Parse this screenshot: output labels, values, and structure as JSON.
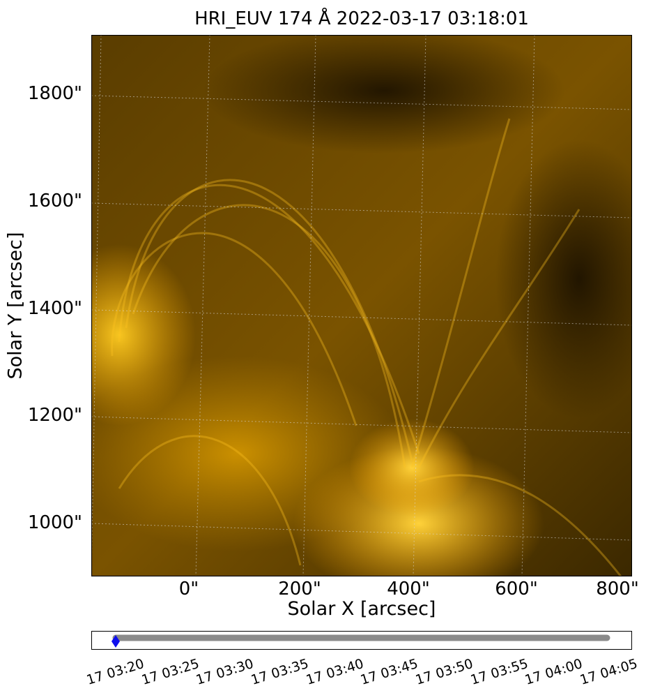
{
  "title": "HRI_EUV 174 Å 2022-03-17 03:18:01",
  "xlabel": "Solar X [arcsec]",
  "ylabel": "Solar Y [arcsec]",
  "x_ticks": [
    "0\"",
    "200\"",
    "400\"",
    "600\"",
    "800\""
  ],
  "y_ticks": [
    "1800\"",
    "1600\"",
    "1400\"",
    "1200\"",
    "1000\""
  ],
  "time_ticks": [
    "17 03:20",
    "17 03:25",
    "17 03:30",
    "17 03:35",
    "17 03:40",
    "17 03:45",
    "17 03:50",
    "17 03:55",
    "17 04:00",
    "17 04:05"
  ],
  "colors": {
    "image_dark": "#2a1d00",
    "image_bright": "#ffbf1a",
    "grid": "#d8d8d8",
    "slider_track": "#8a8a8a",
    "slider_marker": "#1010ee"
  },
  "slider": {
    "position": 0.0
  },
  "icons": {
    "slider_marker": "diamond-marker-icon"
  }
}
